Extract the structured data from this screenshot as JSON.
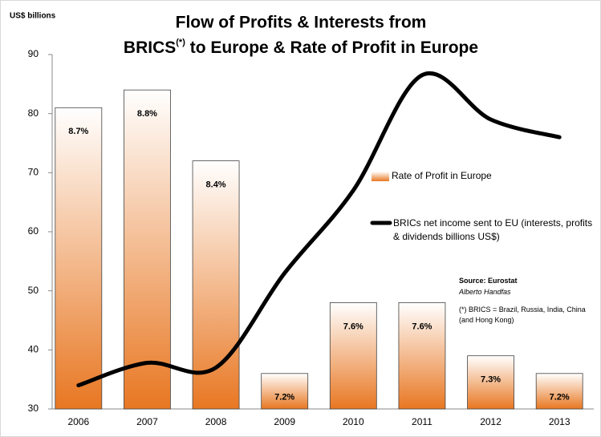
{
  "chart_data": {
    "type": "bar_line",
    "title": [
      "Flow of Profits & Interests from",
      "BRICS",
      "(*)",
      " to Europe & Rate of Profit in Europe"
    ],
    "y_label": "US$ billions",
    "categories": [
      "2006",
      "2007",
      "2008",
      "2009",
      "2010",
      "2011",
      "2012",
      "2013"
    ],
    "ylim": [
      30,
      90
    ],
    "yticks": [
      30,
      40,
      50,
      60,
      70,
      80,
      90
    ],
    "y2lim": [
      7.0,
      9.0
    ],
    "series": [
      {
        "name": "Rate of Profit in Europe",
        "type": "bar",
        "axis": "y2",
        "color": "#e87722",
        "values": [
          8.7,
          8.8,
          8.4,
          7.2,
          7.6,
          7.6,
          7.3,
          7.2
        ],
        "value_labels": [
          "8.7%",
          "8.8%",
          "8.4%",
          "7.2%",
          "7.6%",
          "7.6%",
          "7.3%",
          "7.2%"
        ]
      },
      {
        "name": "BRICs net income sent to EU (interests, profits & dividends billions US$)",
        "type": "line",
        "color": "#000000",
        "values": [
          34,
          37.8,
          37,
          53,
          67,
          86.5,
          79,
          76
        ]
      }
    ],
    "annotations": [
      "Source: Eurostat",
      "Alberto Handfas",
      "(*) BRICS = Brazil, Russia, India, China (and Hong Kong)"
    ]
  }
}
